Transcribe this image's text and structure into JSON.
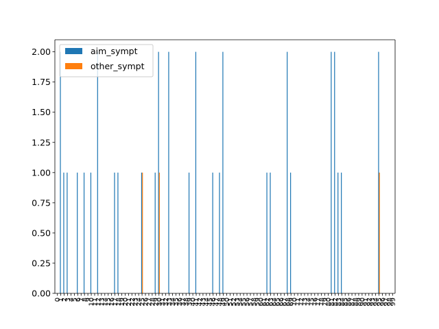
{
  "chart_data": {
    "type": "bar",
    "xlabel": "",
    "ylabel": "",
    "ylim": [
      0,
      2.1
    ],
    "yticks": [
      0.0,
      0.25,
      0.5,
      0.75,
      1.0,
      1.25,
      1.5,
      1.75,
      2.0
    ],
    "ytick_labels": [
      "0.00",
      "0.25",
      "0.50",
      "0.75",
      "1.00",
      "1.25",
      "1.50",
      "1.75",
      "2.00"
    ],
    "grid": false,
    "legend_position": "top-left",
    "categories": [
      "0",
      "1",
      "2",
      "3",
      "4",
      "5",
      "6",
      "7",
      "8",
      "9",
      "10",
      "11",
      "12",
      "13",
      "14",
      "15",
      "16",
      "17",
      "18",
      "19",
      "20",
      "21",
      "22",
      "23",
      "24",
      "25",
      "26",
      "27",
      "28",
      "29",
      "30",
      "31",
      "32",
      "33",
      "34",
      "35",
      "36",
      "37",
      "38",
      "39",
      "40",
      "41",
      "42",
      "43",
      "44",
      "45",
      "46",
      "47",
      "48",
      "49",
      "50",
      "51",
      "52",
      "53",
      "54",
      "55",
      "56",
      "57",
      "58",
      "59",
      "60",
      "61",
      "62",
      "63",
      "64",
      "65",
      "66",
      "67",
      "68",
      "69",
      "70",
      "71",
      "72",
      "73",
      "74",
      "75",
      "76",
      "77",
      "78",
      "79",
      "80",
      "81",
      "82",
      "83",
      "84",
      "85",
      "86",
      "87",
      "88",
      "89",
      "90",
      "91",
      "92",
      "93",
      "94",
      "95",
      "96",
      "97",
      "98",
      "99"
    ],
    "series": [
      {
        "name": "aim_sympt",
        "color": "#1f77b4",
        "values": [
          0,
          2,
          1,
          1,
          0,
          0,
          1,
          0,
          1,
          0,
          1,
          0,
          2,
          0,
          0,
          0,
          0,
          1,
          1,
          0,
          0,
          0,
          0,
          0,
          0,
          1,
          0,
          0,
          0,
          1,
          2,
          0,
          0,
          2,
          0,
          0,
          0,
          0,
          0,
          1,
          0,
          2,
          0,
          0,
          0,
          0,
          1,
          0,
          1,
          2,
          0,
          0,
          0,
          0,
          0,
          0,
          0,
          0,
          0,
          0,
          0,
          0,
          1,
          1,
          0,
          0,
          0,
          0,
          2,
          1,
          0,
          0,
          0,
          0,
          0,
          0,
          0,
          0,
          0,
          0,
          0,
          2,
          2,
          1,
          1,
          0,
          0,
          0,
          0,
          0,
          0,
          0,
          0,
          0,
          0,
          2,
          0,
          0,
          0,
          0
        ]
      },
      {
        "name": "other_sympt",
        "color": "#ff7f0e",
        "values": [
          0,
          0,
          0,
          0,
          0,
          0,
          0,
          0,
          0,
          0,
          0,
          0,
          0,
          0,
          0,
          0,
          0,
          0,
          0,
          0,
          0,
          0,
          0,
          0,
          0,
          1,
          0,
          0,
          0,
          0,
          1,
          0,
          0,
          0,
          0,
          0,
          0,
          0,
          0,
          0,
          0,
          0,
          0,
          0,
          0,
          0,
          0,
          0,
          0,
          0,
          0,
          0,
          0,
          0,
          0,
          0,
          0,
          0,
          0,
          0,
          0,
          0,
          0,
          0,
          0,
          0,
          0,
          0,
          0,
          0,
          0,
          0,
          0,
          0,
          0,
          0,
          0,
          0,
          0,
          0,
          0,
          0,
          0,
          0,
          0,
          0,
          0,
          0,
          0,
          0,
          0,
          0,
          0,
          0,
          0,
          1,
          0,
          0,
          0,
          0
        ]
      }
    ]
  }
}
